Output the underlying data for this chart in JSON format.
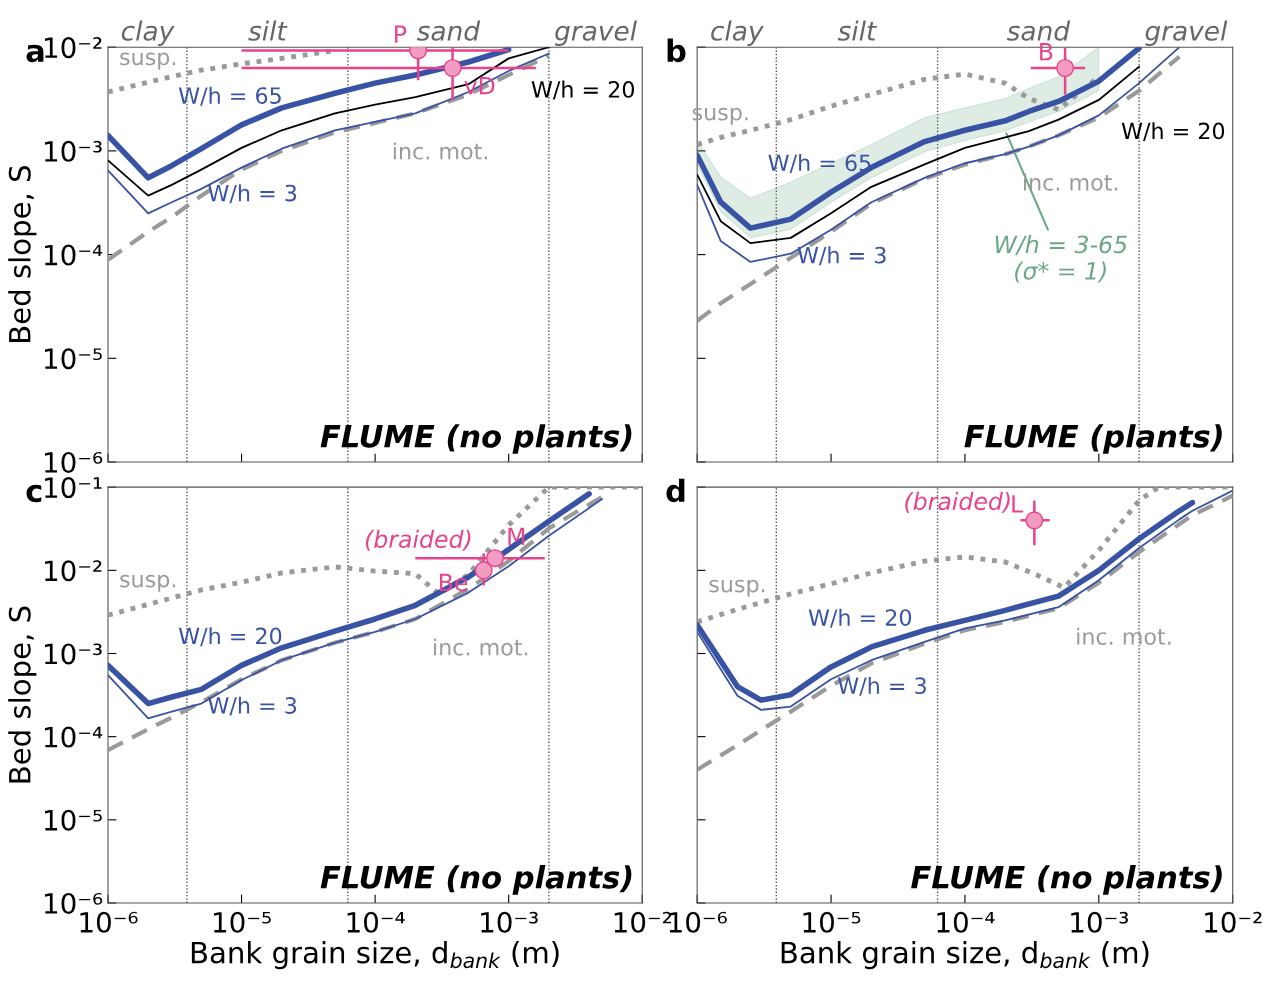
{
  "chart_data": [
    {
      "type": "line",
      "title": "a",
      "ylabel": "Bed slope, S",
      "log": "xy",
      "tick_labels": "y",
      "xlim": [
        1e-06,
        0.01
      ],
      "ylim": [
        1e-06,
        0.01
      ],
      "xticks": [
        {
          "value": 1e-06,
          "label": null
        },
        {
          "value": 1e-05,
          "label": null
        },
        {
          "value": 0.0001,
          "label": null
        },
        {
          "value": 0.001,
          "label": null
        },
        {
          "value": 0.01,
          "label": null
        }
      ],
      "yticks": [
        {
          "value": 1e-06,
          "label": "10⁻⁶"
        },
        {
          "value": 1e-05,
          "label": "10⁻⁵"
        },
        {
          "value": 0.0001,
          "label": "10⁻⁴"
        },
        {
          "value": 0.001,
          "label": "10⁻³"
        },
        {
          "value": 0.01,
          "label": "10⁻²"
        }
      ],
      "x": [
        1e-06,
        2e-06,
        3e-06,
        5e-06,
        1e-05,
        2e-05,
        5e-05,
        0.0001,
        0.0002,
        0.0005,
        0.001,
        0.002
      ],
      "series": [
        {
          "name": "susp.",
          "color": "#9a9a9a",
          "line_style": "dotted",
          "values": [
            0.0037,
            0.0046,
            0.0052,
            0.006,
            0.0069,
            0.0078,
            0.0093,
            null,
            null,
            null,
            null,
            null
          ]
        },
        {
          "name": "inc. mot.",
          "color": "#9a9a9a",
          "line_style": "dashed",
          "values": [
            8.9e-05,
            0.000166,
            0.00023,
            0.00037,
            0.00066,
            0.001,
            0.00151,
            0.00186,
            0.0023,
            0.0035,
            0.0054,
            0.0083
          ]
        },
        {
          "name": "W/h = 65",
          "color": "#3953a4",
          "line_style": "solid",
          "values": [
            0.00141,
            0.00055,
            0.00072,
            0.00105,
            0.00178,
            0.0026,
            0.0036,
            0.0045,
            0.0054,
            0.0072,
            0.0095,
            null
          ]
        },
        {
          "name": "W/h = 20",
          "color": "#000000",
          "line_style": "solid",
          "values": [
            0.00081,
            0.00037,
            0.00047,
            0.00066,
            0.00107,
            0.00158,
            0.0023,
            0.0028,
            0.0033,
            0.0044,
            0.0078,
            0.01
          ]
        },
        {
          "name": "W/h = 3",
          "color": "#3953a4",
          "line_style": "solid",
          "values": [
            0.00065,
            0.00025,
            0.00032,
            0.00043,
            0.00069,
            0.00105,
            0.00158,
            0.0019,
            0.0023,
            0.0037,
            0.0059,
            0.0087
          ]
        },
        {
          "type": "scatter",
          "name": "P",
          "color": "#e8428c",
          "marker": "circle",
          "x": [
            0.00021
          ],
          "values": [
            0.0093
          ],
          "errors": [
            [
              0.0048,
              0.01
            ]
          ],
          "xerrors": [
            [
              1e-05,
              0.001
            ]
          ]
        },
        {
          "type": "scatter",
          "name": "vD",
          "color": "#e8428c",
          "marker": "circle",
          "x": [
            0.00038
          ],
          "values": [
            0.0063
          ],
          "errors": [
            [
              0.0031,
              0.01
            ]
          ],
          "xerrors": [
            [
              1e-05,
              0.0016
            ]
          ]
        }
      ],
      "ref_lines": [
        {
          "axis": "x",
          "value": 3.9e-06,
          "color": "#555555",
          "line_style": "dotted"
        },
        {
          "axis": "x",
          "value": 6.25e-05,
          "color": "#555555",
          "line_style": "dotted"
        },
        {
          "axis": "x",
          "value": 0.002,
          "color": "#555555",
          "line_style": "dotted"
        }
      ],
      "annotations": [
        "clay",
        "silt",
        "sand",
        "gravel",
        "FLUME (no plants)"
      ]
    },
    {
      "type": "line",
      "title": "b",
      "log": "xy",
      "tick_labels": false,
      "xlim": [
        1e-06,
        0.01
      ],
      "ylim": [
        1e-06,
        0.01
      ],
      "xticks": [
        {
          "value": 1e-06,
          "label": null
        },
        {
          "value": 1e-05,
          "label": null
        },
        {
          "value": 0.0001,
          "label": null
        },
        {
          "value": 0.001,
          "label": null
        },
        {
          "value": 0.01,
          "label": null
        }
      ],
      "yticks": [
        {
          "value": 1e-06,
          "label": null
        },
        {
          "value": 1e-05,
          "label": null
        },
        {
          "value": 0.0001,
          "label": null
        },
        {
          "value": 0.001,
          "label": null
        },
        {
          "value": 0.01,
          "label": null
        }
      ],
      "x": [
        1e-06,
        1.5e-06,
        2.5e-06,
        5e-06,
        1e-05,
        2e-05,
        5e-05,
        0.0001,
        0.0002,
        0.0003,
        0.0005,
        0.001,
        0.002,
        0.004
      ],
      "series": [
        {
          "type": "line",
          "name": "W/h = 3-65\n(σ* = 1)",
          "color": "#6aa884",
          "values": [
            null,
            null,
            null,
            null,
            null,
            null,
            null,
            null,
            null,
            null,
            null,
            null,
            null,
            null
          ],
          "upper": [
            0.00126,
            0.00056,
            0.00035,
            0.0005,
            0.00076,
            0.00115,
            0.0021,
            0.0026,
            0.0032,
            0.004,
            0.0052,
            0.01,
            null,
            null
          ],
          "lower": [
            0.00073,
            0.00026,
            0.000145,
            0.000175,
            0.00032,
            0.00055,
            0.00098,
            0.00126,
            0.00156,
            0.0019,
            0.0024,
            0.0038,
            null,
            null
          ]
        },
        {
          "name": "susp.",
          "color": "#9a9a9a",
          "line_style": "dotted",
          "values": [
            0.00115,
            0.00135,
            0.00158,
            0.002,
            0.0027,
            0.0035,
            0.0049,
            0.0055,
            0.0045,
            0.0032,
            0.0025,
            0.0052,
            null,
            null
          ]
        },
        {
          "name": "inc. mot.",
          "color": "#9a9a9a",
          "line_style": "dashed",
          "values": [
            2.3e-05,
            3.4e-05,
            5.2e-05,
            9.3e-05,
            0.000166,
            0.00031,
            0.00054,
            0.00074,
            0.00093,
            0.0011,
            0.00141,
            0.0021,
            0.0038,
            0.0081
          ]
        },
        {
          "name": "W/h = 65",
          "color": "#3953a4",
          "line_style": "solid",
          "values": [
            0.00091,
            0.00032,
            0.00018,
            0.00022,
            0.0004,
            0.00069,
            0.00123,
            0.00158,
            0.00195,
            0.0024,
            0.003,
            0.0047,
            0.0098,
            null
          ]
        },
        {
          "name": "W/h = 20",
          "color": "#000000",
          "line_style": "solid",
          "values": [
            0.00059,
            0.00021,
            0.000129,
            0.000145,
            0.00025,
            0.00045,
            0.00074,
            0.00107,
            0.00135,
            0.00155,
            0.002,
            0.0031,
            0.0065,
            null
          ]
        },
        {
          "name": "W/h = 3",
          "color": "#3953a4",
          "line_style": "solid",
          "values": [
            0.00047,
            0.000135,
            8.5e-05,
            0.000102,
            0.000174,
            0.00032,
            0.00055,
            0.00076,
            0.00093,
            0.0011,
            0.00141,
            0.0022,
            0.0045,
            0.01
          ]
        },
        {
          "type": "scatter",
          "name": "B",
          "color": "#e8428c",
          "marker": "circle",
          "x": [
            0.00056
          ],
          "values": [
            0.0063
          ],
          "errors": [
            [
              0.0035,
              0.01
            ]
          ],
          "xerrors": [
            [
              0.00031,
              0.00079
            ]
          ]
        }
      ],
      "ref_lines": [
        {
          "axis": "x",
          "value": 3.9e-06,
          "color": "#555555",
          "line_style": "dotted"
        },
        {
          "axis": "x",
          "value": 6.25e-05,
          "color": "#555555",
          "line_style": "dotted"
        },
        {
          "axis": "x",
          "value": 0.002,
          "color": "#555555",
          "line_style": "dotted"
        }
      ],
      "annotations": [
        "clay",
        "silt",
        "sand",
        "gravel",
        "FLUME (plants)"
      ]
    },
    {
      "type": "line",
      "title": "c",
      "ylabel": "Bed slope, S",
      "xlabel": "Bank grain size, d$_{bank}$ (m)",
      "log": "xy",
      "xlim": [
        1e-06,
        0.01
      ],
      "ylim": [
        1e-06,
        0.1
      ],
      "xticks": [
        {
          "value": 1e-06,
          "label": "10⁻⁶"
        },
        {
          "value": 1e-05,
          "label": "10⁻⁵"
        },
        {
          "value": 0.0001,
          "label": "10⁻⁴"
        },
        {
          "value": 0.001,
          "label": "10⁻³"
        },
        {
          "value": 0.01,
          "label": "10⁻²"
        }
      ],
      "yticks": [
        {
          "value": 1e-06,
          "label": "10⁻⁶"
        },
        {
          "value": 1e-05,
          "label": "10⁻⁵"
        },
        {
          "value": 0.0001,
          "label": "10⁻⁴"
        },
        {
          "value": 0.001,
          "label": "10⁻³"
        },
        {
          "value": 0.01,
          "label": "10⁻²"
        },
        {
          "value": 0.1,
          "label": "10⁻¹"
        }
      ],
      "x": [
        1e-06,
        2e-06,
        3e-06,
        5e-06,
        1e-05,
        2e-05,
        5e-05,
        0.0001,
        0.0002,
        0.0005,
        0.001,
        0.002,
        0.004,
        0.005
      ],
      "series": [
        {
          "name": "susp.",
          "color": "#9a9a9a",
          "line_style": "dotted",
          "x": [
            1e-06,
            2e-06,
            5e-06,
            1e-05,
            2e-05,
            5e-05,
            0.0001,
            0.0002,
            0.0003,
            0.0005,
            0.001,
            0.002,
            0.01
          ],
          "values": [
            0.0029,
            0.0039,
            0.0058,
            0.0072,
            0.0093,
            0.011,
            0.0098,
            0.0091,
            0.0052,
            0.0089,
            0.035,
            0.1,
            0.1
          ]
        },
        {
          "name": "inc. mot.",
          "color": "#9a9a9a",
          "line_style": "dashed",
          "values": [
            6.9e-05,
            0.000123,
            0.00017,
            0.00026,
            0.00049,
            0.00083,
            0.00135,
            0.00182,
            0.0026,
            0.006,
            0.0129,
            0.032,
            0.062,
            0.076
          ]
        },
        {
          "name": "W/h = 20",
          "color": "#3953a4",
          "line_style": "solid",
          "values": [
            0.00072,
            0.00025,
            0.0003,
            0.00037,
            0.00072,
            0.00117,
            0.00186,
            0.0026,
            0.0038,
            0.0083,
            0.0178,
            0.039,
            0.083,
            null
          ]
        },
        {
          "name": "W/h = 3",
          "color": "#3953a4",
          "line_style": "solid",
          "values": [
            0.00055,
            0.000166,
            0.0002,
            0.00025,
            0.00048,
            0.00083,
            0.00135,
            0.00182,
            0.0026,
            0.0054,
            0.0112,
            0.026,
            0.056,
            0.072
          ]
        },
        {
          "type": "scatter",
          "name": "M",
          "color": "#e8428c",
          "marker": "circle",
          "x": [
            0.00079
          ],
          "values": [
            0.014
          ],
          "xerrors": [
            [
              0.0002,
              0.00186
            ]
          ]
        },
        {
          "type": "scatter",
          "name": "Be",
          "color": "#e8428c",
          "marker": "circle",
          "x": [
            0.00065
          ],
          "values": [
            0.01
          ],
          "errors": [
            [
              0.0066,
              0.016
            ]
          ]
        }
      ],
      "ref_lines": [
        {
          "axis": "x",
          "value": 3.9e-06,
          "color": "#555555",
          "line_style": "dotted"
        },
        {
          "axis": "x",
          "value": 6.25e-05,
          "color": "#555555",
          "line_style": "dotted"
        },
        {
          "axis": "x",
          "value": 0.002,
          "color": "#555555",
          "line_style": "dotted"
        }
      ],
      "annotations": [
        {
          "text": "(braided)",
          "x": 0.00079,
          "y": 0.014
        },
        "FLUME (no plants)"
      ]
    },
    {
      "type": "line",
      "title": "d",
      "xlabel": "Bank grain size, d$_{bank}$ (m)",
      "log": "xy",
      "tick_labels": "x",
      "xlim": [
        1e-06,
        0.01
      ],
      "ylim": [
        1e-06,
        0.1
      ],
      "xticks": [
        {
          "value": 1e-06,
          "label": "10⁻⁶"
        },
        {
          "value": 1e-05,
          "label": "10⁻⁵"
        },
        {
          "value": 0.0001,
          "label": "10⁻⁴"
        },
        {
          "value": 0.001,
          "label": "10⁻³"
        },
        {
          "value": 0.01,
          "label": "10⁻²"
        }
      ],
      "yticks": [
        {
          "value": 1e-06,
          "label": null
        },
        {
          "value": 1e-05,
          "label": null
        },
        {
          "value": 0.0001,
          "label": null
        },
        {
          "value": 0.001,
          "label": null
        },
        {
          "value": 0.01,
          "label": null
        },
        {
          "value": 0.1,
          "label": null
        }
      ],
      "x": [
        1e-06,
        2e-06,
        3e-06,
        5e-06,
        1e-05,
        2e-05,
        5e-05,
        0.0001,
        0.0002,
        0.0005,
        0.001,
        0.002,
        0.004,
        0.005,
        0.01
      ],
      "series": [
        {
          "name": "susp.",
          "color": "#9a9a9a",
          "line_style": "dotted",
          "x": [
            1e-06,
            2e-06,
            5e-06,
            1e-05,
            2e-05,
            5e-05,
            0.0001,
            0.0002,
            0.00035,
            0.00055,
            0.001,
            0.002,
            0.0028,
            0.01
          ],
          "values": [
            0.0024,
            0.0034,
            0.0052,
            0.0069,
            0.0093,
            0.0129,
            0.0145,
            0.0126,
            0.0087,
            0.0062,
            0.0174,
            0.069,
            0.1,
            0.1
          ]
        },
        {
          "name": "inc. mot.",
          "color": "#9a9a9a",
          "line_style": "dashed",
          "values": [
            4e-05,
            7.9e-05,
            0.00012,
            0.0002,
            0.00041,
            0.00076,
            0.00132,
            0.0019,
            0.0024,
            0.0035,
            0.0071,
            0.0166,
            0.036,
            0.046,
            0.079
          ]
        },
        {
          "name": "W/h = 20",
          "color": "#3953a4",
          "line_style": "solid",
          "values": [
            0.0022,
            0.0004,
            0.000275,
            0.00032,
            0.00069,
            0.0012,
            0.0019,
            0.0025,
            0.0033,
            0.0049,
            0.01,
            0.024,
            0.052,
            0.065,
            null
          ]
        },
        {
          "name": "W/h = 3",
          "color": "#3953a4",
          "line_style": "solid",
          "values": [
            0.00182,
            0.00031,
            0.00021,
            0.00023,
            0.00049,
            0.00083,
            0.00138,
            0.002,
            0.0025,
            0.0036,
            0.0076,
            0.0186,
            0.041,
            0.052,
            0.091
          ]
        },
        {
          "type": "scatter",
          "name": "L",
          "color": "#e8428c",
          "marker": "circle",
          "x": [
            0.00033
          ],
          "values": [
            0.04
          ],
          "errors": [
            [
              0.02,
              0.069
            ]
          ],
          "xerrors": [
            [
              0.00026,
              0.00043
            ]
          ]
        }
      ],
      "ref_lines": [
        {
          "axis": "x",
          "value": 3.9e-06,
          "color": "#555555",
          "line_style": "dotted"
        },
        {
          "axis": "x",
          "value": 6.25e-05,
          "color": "#555555",
          "line_style": "dotted"
        },
        {
          "axis": "x",
          "value": 0.002,
          "color": "#555555",
          "line_style": "dotted"
        }
      ],
      "annotations": [
        {
          "text": "(braided)",
          "x": 0.00033,
          "y": 0.04
        },
        "FLUME (no plants)"
      ]
    }
  ]
}
